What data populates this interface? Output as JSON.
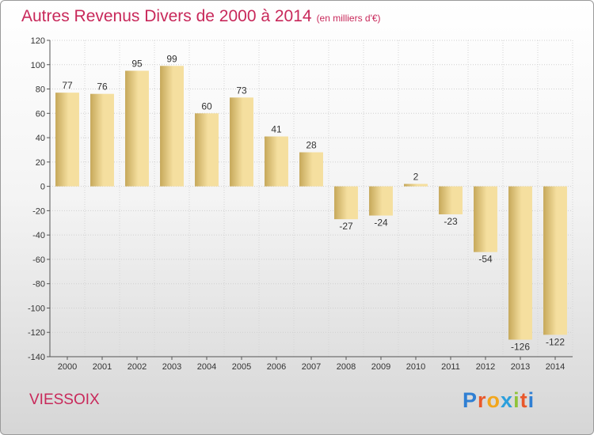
{
  "title": "Autres Revenus Divers de 2000 à 2014",
  "title_unit": "(en milliers d'€)",
  "place_name": "VIESSOIX",
  "logo": {
    "text": "Proxiti",
    "letter_colors": [
      "#2f7fd3",
      "#e9582b",
      "#f2a61c",
      "#2c9fdc",
      "#8fc33a",
      "#e9582b",
      "#2f7fd3"
    ]
  },
  "chart_data": {
    "type": "bar",
    "categories": [
      "2000",
      "2001",
      "2002",
      "2003",
      "2004",
      "2005",
      "2006",
      "2007",
      "2008",
      "2009",
      "2010",
      "2011",
      "2012",
      "2013",
      "2014"
    ],
    "values": [
      77,
      76,
      95,
      99,
      60,
      73,
      41,
      28,
      -27,
      -24,
      2,
      -23,
      -54,
      -126,
      -122
    ],
    "data_labels": [
      "77",
      "76",
      "95",
      "99",
      "60",
      "73",
      "41",
      "28",
      "-27",
      "-24",
      "2",
      "-23",
      "-54",
      "-126",
      "-122"
    ],
    "yticks": [
      120,
      100,
      80,
      60,
      40,
      20,
      0,
      -20,
      -40,
      -60,
      -80,
      -100,
      -120,
      -140
    ],
    "ylim": [
      -140,
      120
    ],
    "grid": true,
    "bar_color_light": "#f5df9f",
    "bar_color_dark": "#c6a85a"
  }
}
